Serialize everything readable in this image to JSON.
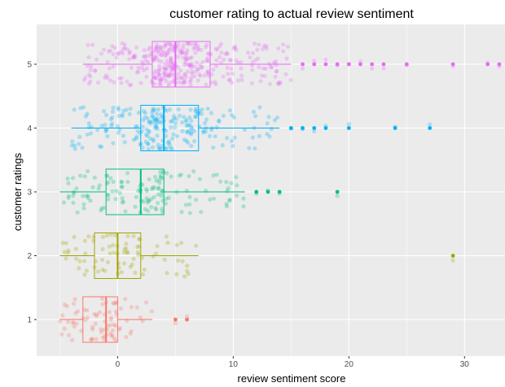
{
  "chart_data": {
    "type": "boxplot",
    "orientation": "horizontal",
    "title": "customer rating to actual review sentiment",
    "xlabel": "review sentiment score",
    "ylabel": "customer ratings",
    "xlim": [
      -7,
      33.5
    ],
    "xticks": [
      0,
      10,
      20,
      30
    ],
    "categories": [
      "1",
      "2",
      "3",
      "4",
      "5"
    ],
    "grid": true,
    "background": "#ebebeb",
    "boxes": [
      {
        "rating": "1",
        "color": "#f8766d",
        "whisker_low": -5,
        "q1": -3,
        "median": -1,
        "q3": 0,
        "whisker_high": 3,
        "outliers": [
          5,
          6
        ],
        "jitter_n": 80
      },
      {
        "rating": "2",
        "color": "#a3a500",
        "whisker_low": -5,
        "q1": -2,
        "median": 0,
        "q3": 2,
        "whisker_high": 7,
        "outliers": [
          29
        ],
        "jitter_n": 80
      },
      {
        "rating": "3",
        "color": "#00bf7d",
        "whisker_low": -5,
        "q1": -1,
        "median": 2,
        "q3": 4,
        "whisker_high": 11,
        "outliers": [
          12,
          13,
          14,
          19
        ],
        "jitter_n": 140
      },
      {
        "rating": "4",
        "color": "#00b0f6",
        "whisker_low": -4,
        "q1": 2,
        "median": 4,
        "q3": 7,
        "whisker_high": 14,
        "outliers": [
          15,
          16,
          17,
          18,
          20,
          24,
          27
        ],
        "jitter_n": 220
      },
      {
        "rating": "5",
        "color": "#e76bf3",
        "whisker_low": -3,
        "q1": 3,
        "median": 5,
        "q3": 8,
        "whisker_high": 15,
        "outliers": [
          16,
          17,
          18,
          19,
          20,
          21,
          22,
          23,
          25,
          29,
          32,
          33
        ],
        "jitter_n": 360
      }
    ]
  }
}
